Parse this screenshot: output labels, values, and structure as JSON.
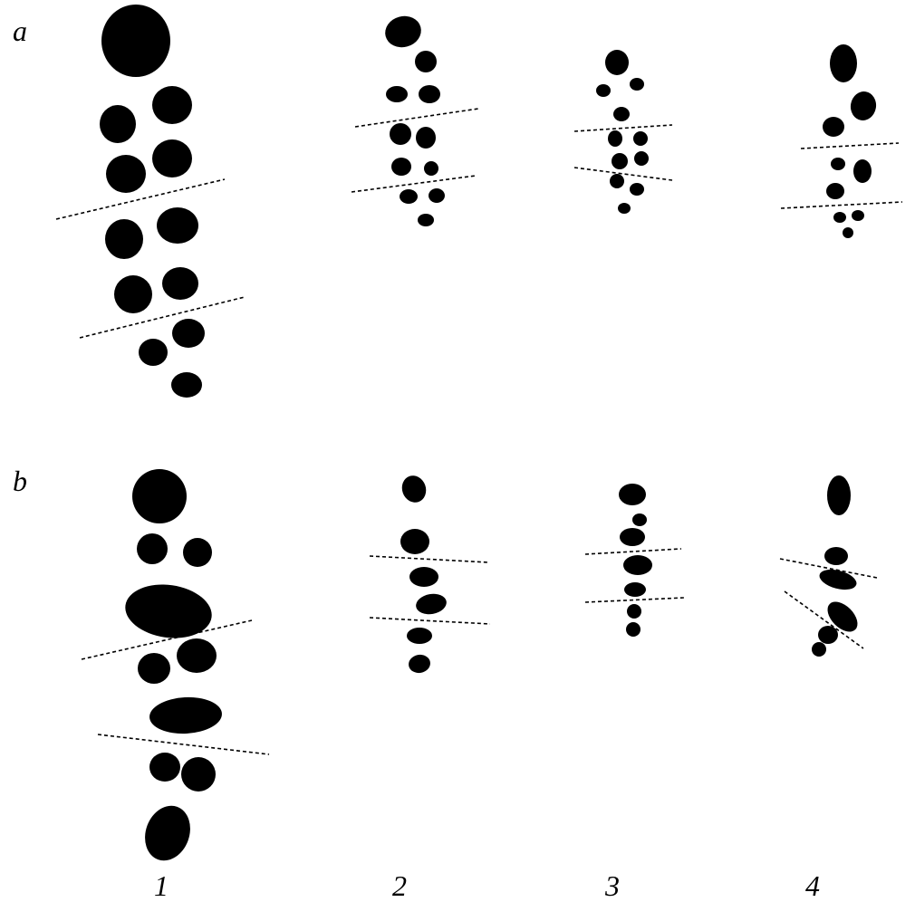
{
  "panels": [
    {
      "label": "a"
    },
    {
      "label": "b"
    }
  ],
  "columns": [
    {
      "label": "1"
    },
    {
      "label": "2"
    },
    {
      "label": "3"
    },
    {
      "label": "4"
    }
  ],
  "colors": {
    "blob": "#000000",
    "divider": "#000000",
    "background": "#ffffff"
  }
}
